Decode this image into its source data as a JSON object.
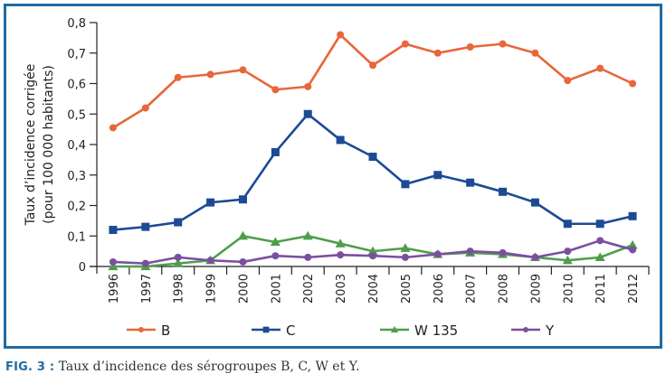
{
  "figure": {
    "caption_label": "FIG. 3 :",
    "caption_text": " Taux d’incidence des sérogroupes B, C, W et Y.",
    "frame_color": "#1f6ca3"
  },
  "chart_data": {
    "type": "line",
    "title": "",
    "xlabel": "",
    "ylabel_line1": "Taux d’incidence corrigée",
    "ylabel_line2": "(pour 100 000 habitants)",
    "ylim": [
      0,
      0.8
    ],
    "yticks": [
      0,
      0.1,
      0.2,
      0.3,
      0.4,
      0.5,
      0.6,
      0.7,
      0.8
    ],
    "ytick_labels": [
      "0",
      "0,1",
      "0,2",
      "0,3",
      "0,4",
      "0,5",
      "0,6",
      "0,7",
      "0,8"
    ],
    "grid": false,
    "legend_position": "bottom",
    "categories": [
      "1996",
      "1997",
      "1998",
      "1999",
      "2000",
      "2001",
      "2002",
      "2003",
      "2004",
      "2005",
      "2006",
      "2007",
      "2008",
      "2009",
      "2010",
      "2011",
      "2012"
    ],
    "series": [
      {
        "name": "B",
        "color": "#e8673a",
        "marker": "circle",
        "values": [
          0.455,
          0.52,
          0.62,
          0.63,
          0.645,
          0.58,
          0.59,
          0.76,
          0.66,
          0.73,
          0.7,
          0.72,
          0.73,
          0.7,
          0.61,
          0.65,
          0.6
        ]
      },
      {
        "name": "C",
        "color": "#1c4b94",
        "marker": "square",
        "values": [
          0.12,
          0.13,
          0.145,
          0.21,
          0.22,
          0.375,
          0.5,
          0.415,
          0.36,
          0.27,
          0.3,
          0.275,
          0.245,
          0.21,
          0.14,
          0.14,
          0.165
        ]
      },
      {
        "name": "W 135",
        "color": "#4f9e4a",
        "marker": "triangle",
        "values": [
          0.0,
          0.0,
          0.01,
          0.02,
          0.1,
          0.08,
          0.1,
          0.075,
          0.05,
          0.06,
          0.04,
          0.045,
          0.04,
          0.03,
          0.02,
          0.03,
          0.07
        ]
      },
      {
        "name": "Y",
        "color": "#7b4fa0",
        "marker": "circle",
        "values": [
          0.015,
          0.01,
          0.03,
          0.02,
          0.015,
          0.035,
          0.03,
          0.038,
          0.035,
          0.03,
          0.04,
          0.05,
          0.045,
          0.03,
          0.05,
          0.085,
          0.055
        ]
      }
    ]
  }
}
